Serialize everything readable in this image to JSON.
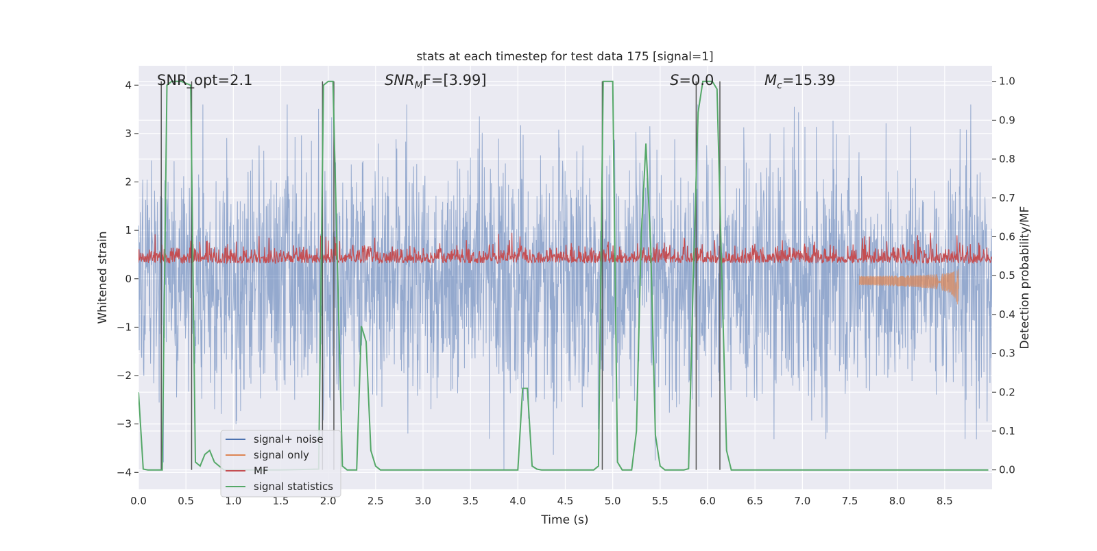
{
  "chart_data": {
    "type": "line",
    "title": "stats at each timestep for test data 175 [signal=1]",
    "xlabel": "Time (s)",
    "ylabel": "Whitened strain",
    "ylabel_right": "Detection probability/MF",
    "xlim": [
      0.0,
      9.0
    ],
    "ylim": [
      -4.35,
      4.4
    ],
    "ylim_right": [
      -0.05,
      1.04
    ],
    "grid": true,
    "x_ticks": [
      "0.0",
      "0.5",
      "1.0",
      "1.5",
      "2.0",
      "2.5",
      "3.0",
      "3.5",
      "4.0",
      "4.5",
      "5.0",
      "5.5",
      "6.0",
      "6.5",
      "7.0",
      "7.5",
      "8.0",
      "8.5"
    ],
    "y_ticks": [
      "−4",
      "−3",
      "−2",
      "−1",
      "0",
      "1",
      "2",
      "3",
      "4"
    ],
    "y_ticks_right": [
      "0.0",
      "0.1",
      "0.2",
      "0.3",
      "0.4",
      "0.5",
      "0.6",
      "0.7",
      "0.8",
      "0.9",
      "1.0"
    ],
    "annotations": {
      "snr_opt": "SNR_opt=2.1",
      "snr_mf_sym": "SNR",
      "snr_mf_sub": "M",
      "snr_mf_rest": "F=[3.99]",
      "s_sym": "S",
      "s_rest": "=0.0",
      "mc_sym": "M",
      "mc_sub": "c",
      "mc_rest": "=15.39"
    },
    "legend": {
      "position": "lower-left",
      "entries": [
        "signal+ noise",
        "signal only",
        "MF",
        "signal statistics"
      ]
    },
    "colors": {
      "noise": "#4c72b0",
      "signal": "#dd8452",
      "mf": "#c44e52",
      "stats": "#55a868",
      "vline": "#555555",
      "axes_bg": "#eaeaf2"
    },
    "series": [
      {
        "name": "signal+ noise",
        "axis": "left",
        "description_range": [
          -3.9,
          3.55
        ]
      },
      {
        "name": "signal only",
        "axis": "left",
        "chirp_end": 8.65,
        "chirp_min": -0.45
      },
      {
        "name": "MF",
        "axis": "left",
        "range": [
          0.05,
          0.95
        ]
      },
      {
        "name": "signal statistics",
        "axis": "right",
        "x": [
          0.0,
          0.05,
          0.1,
          0.15,
          0.2,
          0.25,
          0.3,
          0.35,
          0.4,
          0.45,
          0.5,
          0.55,
          0.6,
          0.65,
          0.7,
          0.75,
          0.8,
          0.85,
          0.9,
          0.95,
          1.0,
          1.5,
          1.9,
          1.95,
          2.0,
          2.05,
          2.1,
          2.15,
          2.2,
          2.25,
          2.3,
          2.35,
          2.4,
          2.45,
          2.5,
          2.55,
          2.6,
          3.0,
          3.5,
          4.0,
          4.05,
          4.1,
          4.15,
          4.2,
          4.25,
          4.3,
          4.5,
          4.8,
          4.85,
          4.9,
          4.95,
          5.0,
          5.05,
          5.1,
          5.15,
          5.2,
          5.25,
          5.3,
          5.35,
          5.4,
          5.45,
          5.5,
          5.55,
          5.6,
          5.65,
          5.7,
          5.75,
          5.8,
          5.85,
          5.9,
          5.95,
          6.0,
          6.05,
          6.1,
          6.15,
          6.2,
          6.25,
          6.3,
          6.5,
          7.0,
          7.5,
          8.0,
          8.5,
          8.96
        ],
        "y": [
          0.2,
          0.002,
          0.0,
          0.0,
          0.0,
          0.0,
          0.99,
          1.0,
          1.0,
          1.0,
          0.995,
          0.99,
          0.02,
          0.01,
          0.04,
          0.05,
          0.02,
          0.01,
          0.0,
          0.0,
          0.0,
          0.0,
          0.002,
          0.99,
          1.0,
          1.0,
          0.5,
          0.01,
          0.0,
          0.0,
          0.0,
          0.37,
          0.33,
          0.05,
          0.01,
          0.0,
          0.0,
          0.0,
          0.0,
          0.0,
          0.21,
          0.21,
          0.01,
          0.002,
          0.0,
          0.0,
          0.0,
          0.0,
          0.01,
          1.0,
          1.0,
          1.0,
          0.02,
          0.0,
          0.0,
          0.0,
          0.1,
          0.6,
          0.84,
          0.58,
          0.09,
          0.01,
          0.0,
          0.0,
          0.0,
          0.0,
          0.0,
          0.003,
          0.5,
          0.92,
          1.0,
          1.0,
          1.0,
          0.98,
          0.5,
          0.05,
          0.0,
          0.0,
          0.0,
          0.0,
          0.0,
          0.0,
          0.0,
          0.0
        ]
      }
    ],
    "vertical_lines_x": [
      0.24,
      0.56,
      1.94,
      2.06,
      4.89,
      5.88,
      6.13
    ]
  }
}
